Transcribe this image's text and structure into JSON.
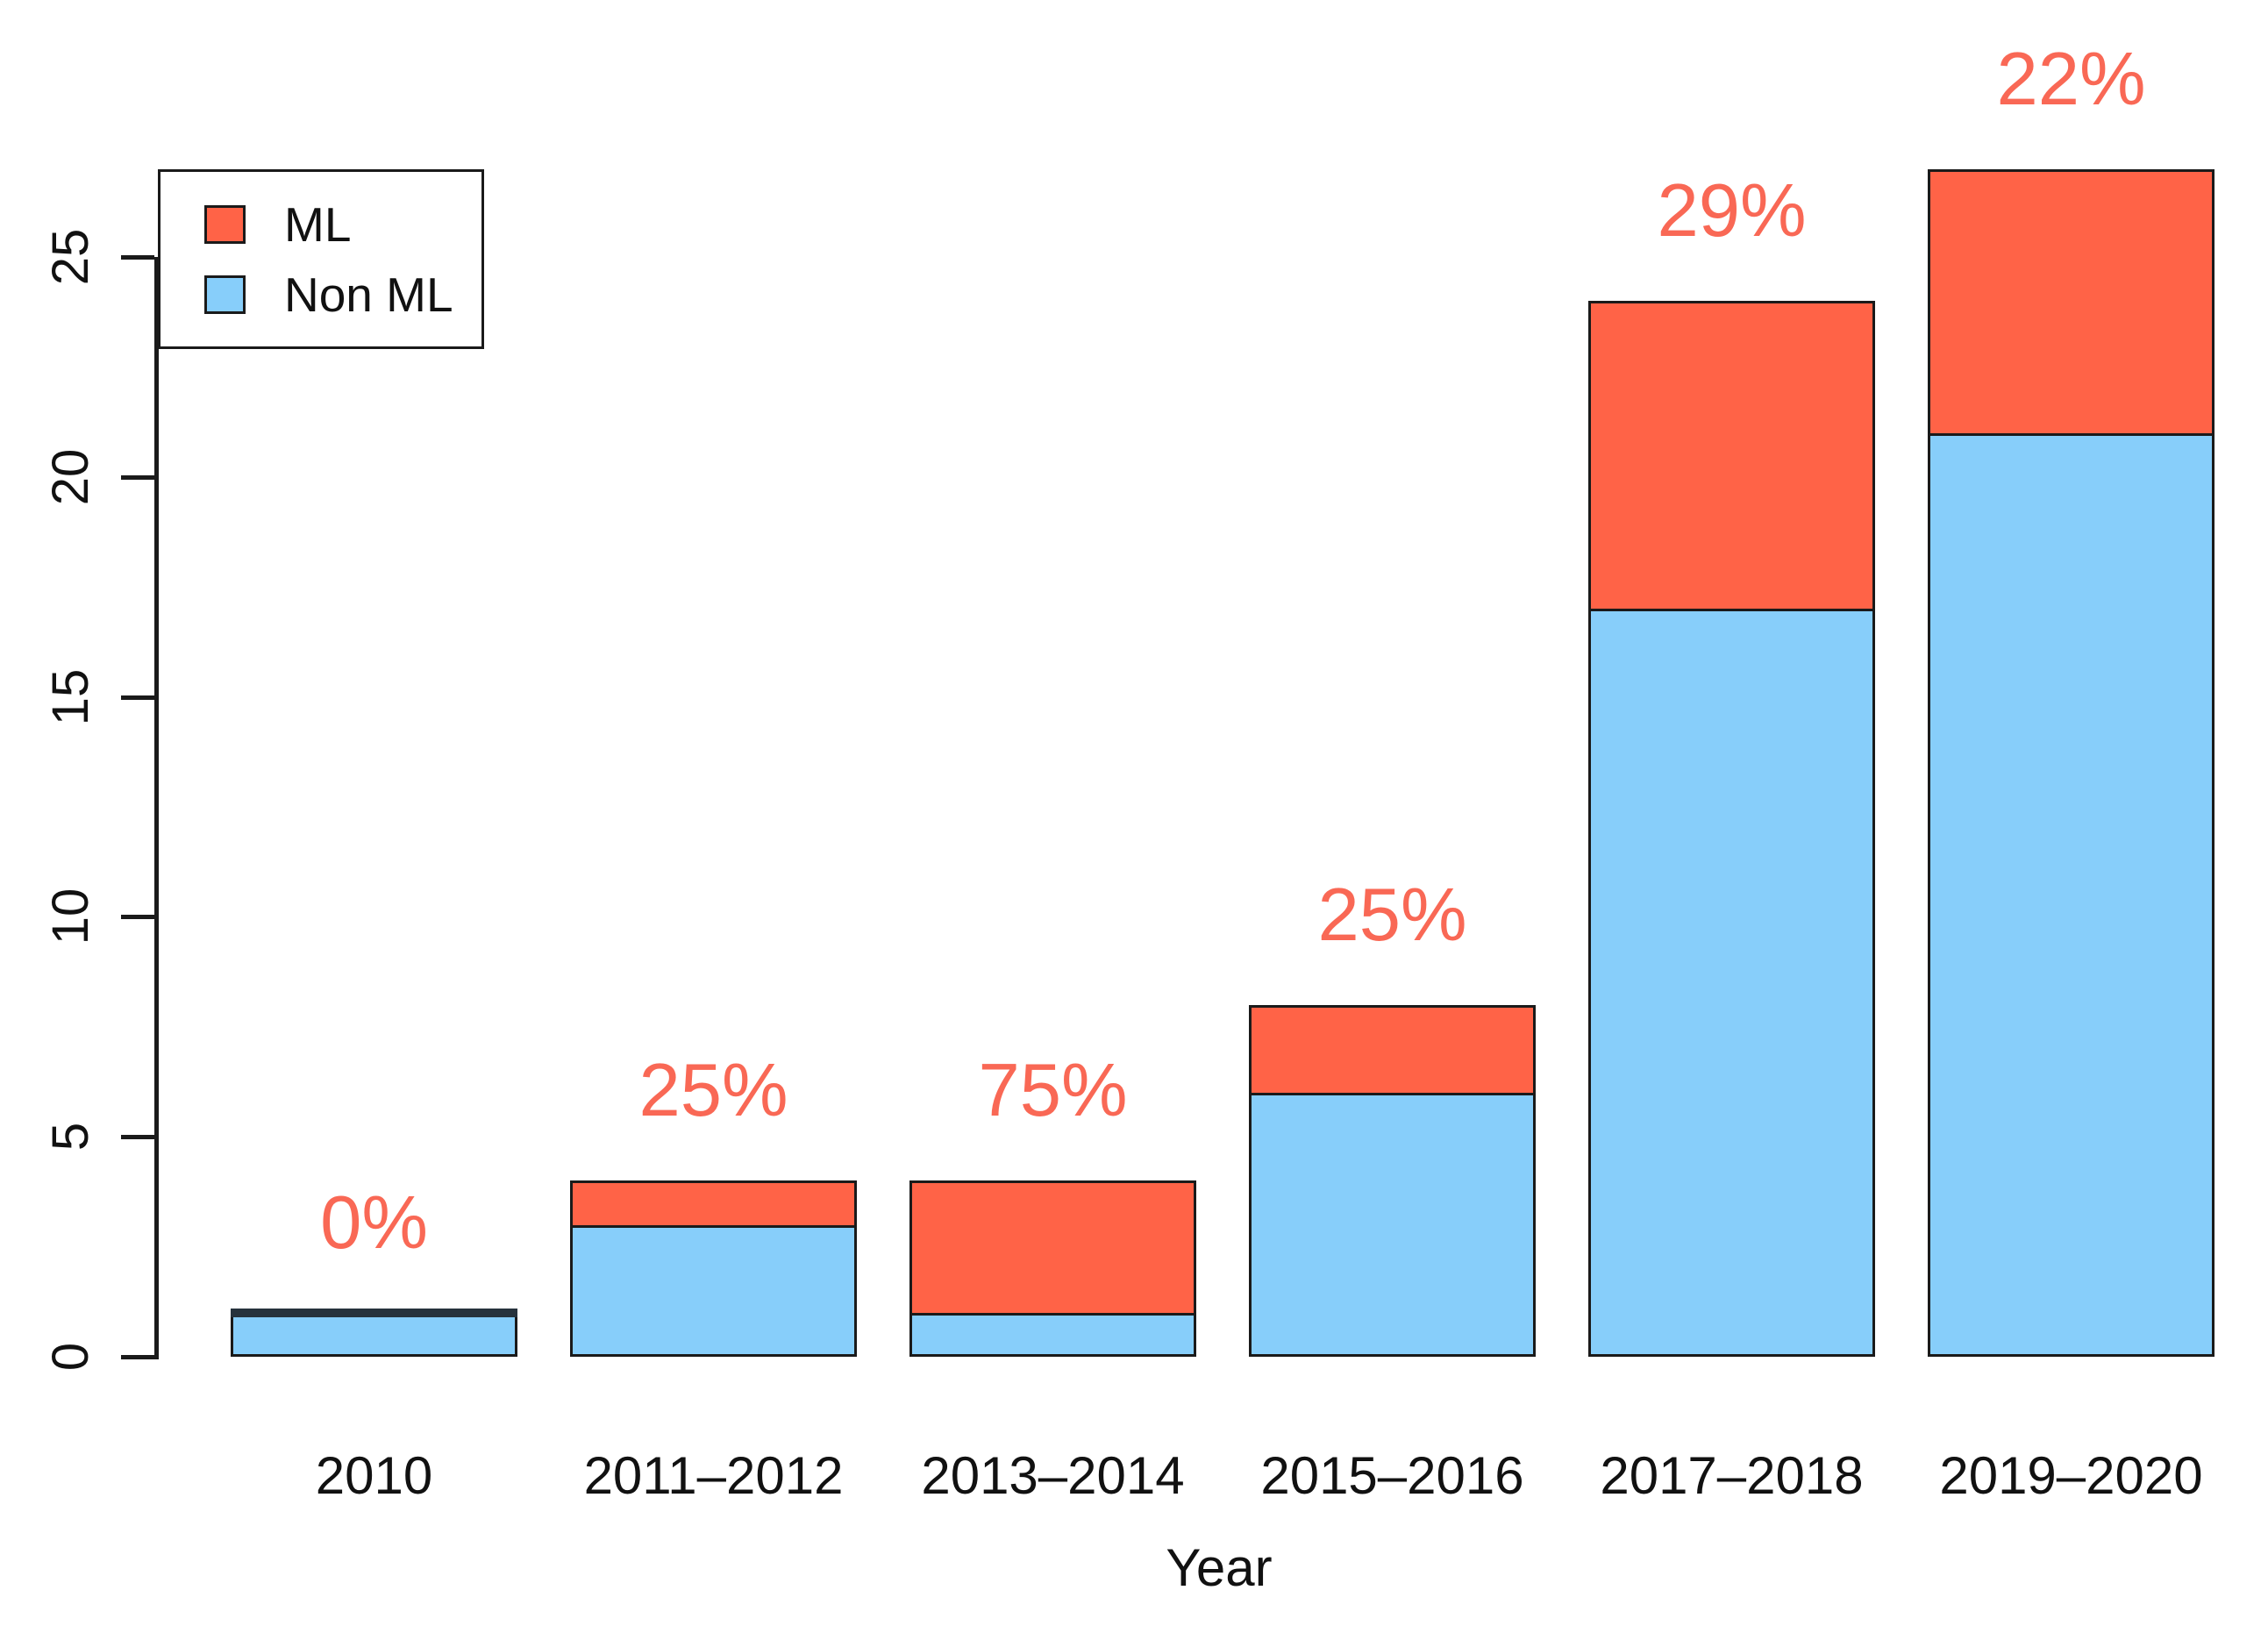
{
  "chart_data": {
    "type": "bar",
    "stacked": true,
    "title": "",
    "xlabel": "Year",
    "ylabel": "",
    "categories": [
      "2010",
      "2011–2012",
      "2013–2014",
      "2015–2016",
      "2017–2018",
      "2019–2020"
    ],
    "series": [
      {
        "name": "ML",
        "color": "#FF6347",
        "values": [
          0,
          1,
          3,
          2,
          7,
          6
        ]
      },
      {
        "name": "Non ML",
        "color": "#87CEFA",
        "values": [
          1,
          3,
          1,
          6,
          17,
          21
        ]
      }
    ],
    "totals": [
      1,
      4,
      4,
      8,
      24,
      27
    ],
    "bar_labels": [
      "0%",
      "25%",
      "75%",
      "25%",
      "29%",
      "22%"
    ],
    "bar_label_color": "#F96855",
    "yticks": [
      0,
      5,
      10,
      15,
      20,
      25
    ],
    "ylim": [
      0,
      27.5
    ],
    "grid": false,
    "legend": {
      "position": "top-left",
      "entries": [
        "ML",
        "Non ML"
      ]
    }
  }
}
